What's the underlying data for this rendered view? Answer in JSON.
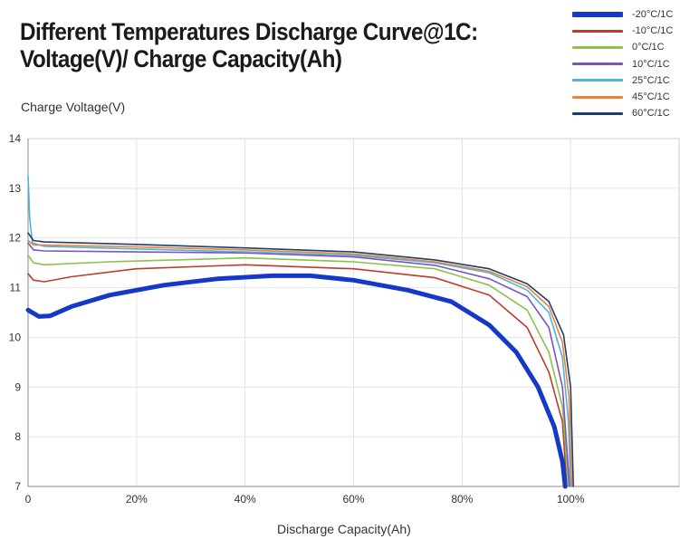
{
  "title_lines": [
    "Different Temperatures Discharge Curve@1C:",
    "Voltage(V)/ Charge Capacity(Ah)"
  ],
  "chart_data": {
    "type": "line",
    "title": "Different Temperatures Discharge Curve@1C: Voltage(V)/ Charge Capacity(Ah)",
    "xlabel": "Discharge Capacity(Ah)",
    "ylabel": "Charge Voltage(V)",
    "xlim": [
      0,
      120
    ],
    "ylim": [
      7,
      14
    ],
    "xticks": [
      0,
      20,
      40,
      60,
      80,
      100
    ],
    "xtick_labels": [
      "0",
      "20%",
      "40%",
      "60%",
      "80%",
      "100%"
    ],
    "yticks": [
      7,
      8,
      9,
      10,
      11,
      12,
      13,
      14
    ],
    "ytick_labels": [
      "7",
      "8",
      "9",
      "10",
      "11",
      "12",
      "13",
      "14"
    ],
    "grid": true,
    "legend_position": "top-right",
    "series": [
      {
        "name": "-20°C/1C",
        "color": "#1538c9",
        "points": [
          [
            0,
            10.55
          ],
          [
            2,
            10.42
          ],
          [
            4,
            10.43
          ],
          [
            8,
            10.62
          ],
          [
            15,
            10.85
          ],
          [
            25,
            11.05
          ],
          [
            35,
            11.18
          ],
          [
            45,
            11.24
          ],
          [
            52,
            11.24
          ],
          [
            60,
            11.15
          ],
          [
            70,
            10.95
          ],
          [
            78,
            10.72
          ],
          [
            85,
            10.25
          ],
          [
            90,
            9.7
          ],
          [
            94,
            9.0
          ],
          [
            97,
            8.2
          ],
          [
            98.5,
            7.5
          ],
          [
            99,
            7.0
          ]
        ]
      },
      {
        "name": "-10°C/1C",
        "color": "#c0392b",
        "points": [
          [
            0,
            11.28
          ],
          [
            1,
            11.15
          ],
          [
            3,
            11.12
          ],
          [
            8,
            11.22
          ],
          [
            20,
            11.38
          ],
          [
            40,
            11.46
          ],
          [
            60,
            11.38
          ],
          [
            75,
            11.2
          ],
          [
            85,
            10.85
          ],
          [
            92,
            10.2
          ],
          [
            96,
            9.3
          ],
          [
            98.5,
            8.3
          ],
          [
            99.3,
            7.0
          ]
        ]
      },
      {
        "name": "0°C/1C",
        "color": "#8bc34a",
        "points": [
          [
            0,
            11.65
          ],
          [
            1,
            11.5
          ],
          [
            3,
            11.46
          ],
          [
            15,
            11.52
          ],
          [
            40,
            11.6
          ],
          [
            60,
            11.52
          ],
          [
            75,
            11.38
          ],
          [
            85,
            11.05
          ],
          [
            92,
            10.55
          ],
          [
            96,
            9.7
          ],
          [
            98.5,
            8.6
          ],
          [
            99.6,
            7.0
          ]
        ]
      },
      {
        "name": "10°C/1C",
        "color": "#7b52c7",
        "points": [
          [
            0,
            11.9
          ],
          [
            1,
            11.76
          ],
          [
            3,
            11.74
          ],
          [
            20,
            11.72
          ],
          [
            40,
            11.7
          ],
          [
            60,
            11.62
          ],
          [
            75,
            11.45
          ],
          [
            85,
            11.18
          ],
          [
            92,
            10.82
          ],
          [
            96,
            10.2
          ],
          [
            98.5,
            9.0
          ],
          [
            99.8,
            7.0
          ]
        ]
      },
      {
        "name": "25°C/1C",
        "color": "#4fb3d9",
        "points": [
          [
            0,
            13.25
          ],
          [
            0.3,
            12.4
          ],
          [
            0.8,
            11.9
          ],
          [
            3,
            11.83
          ],
          [
            20,
            11.78
          ],
          [
            40,
            11.72
          ],
          [
            60,
            11.65
          ],
          [
            75,
            11.5
          ],
          [
            85,
            11.3
          ],
          [
            92,
            10.95
          ],
          [
            96,
            10.5
          ],
          [
            98.5,
            9.6
          ],
          [
            99.6,
            8.3
          ],
          [
            100,
            7.0
          ]
        ]
      },
      {
        "name": "45°C/1C",
        "color": "#e8833a",
        "points": [
          [
            0,
            11.95
          ],
          [
            1,
            11.86
          ],
          [
            3,
            11.86
          ],
          [
            20,
            11.82
          ],
          [
            40,
            11.76
          ],
          [
            60,
            11.68
          ],
          [
            75,
            11.52
          ],
          [
            85,
            11.33
          ],
          [
            92,
            11.02
          ],
          [
            96,
            10.62
          ],
          [
            98.5,
            9.9
          ],
          [
            99.7,
            8.8
          ],
          [
            100.2,
            7.0
          ]
        ]
      },
      {
        "name": "60°C/1C",
        "color": "#1f3c6e",
        "points": [
          [
            0,
            12.1
          ],
          [
            1,
            11.95
          ],
          [
            3,
            11.92
          ],
          [
            20,
            11.87
          ],
          [
            40,
            11.8
          ],
          [
            60,
            11.72
          ],
          [
            75,
            11.56
          ],
          [
            85,
            11.38
          ],
          [
            92,
            11.08
          ],
          [
            96,
            10.72
          ],
          [
            98.7,
            10.05
          ],
          [
            100,
            9.0
          ],
          [
            100.5,
            7.0
          ]
        ]
      }
    ]
  }
}
